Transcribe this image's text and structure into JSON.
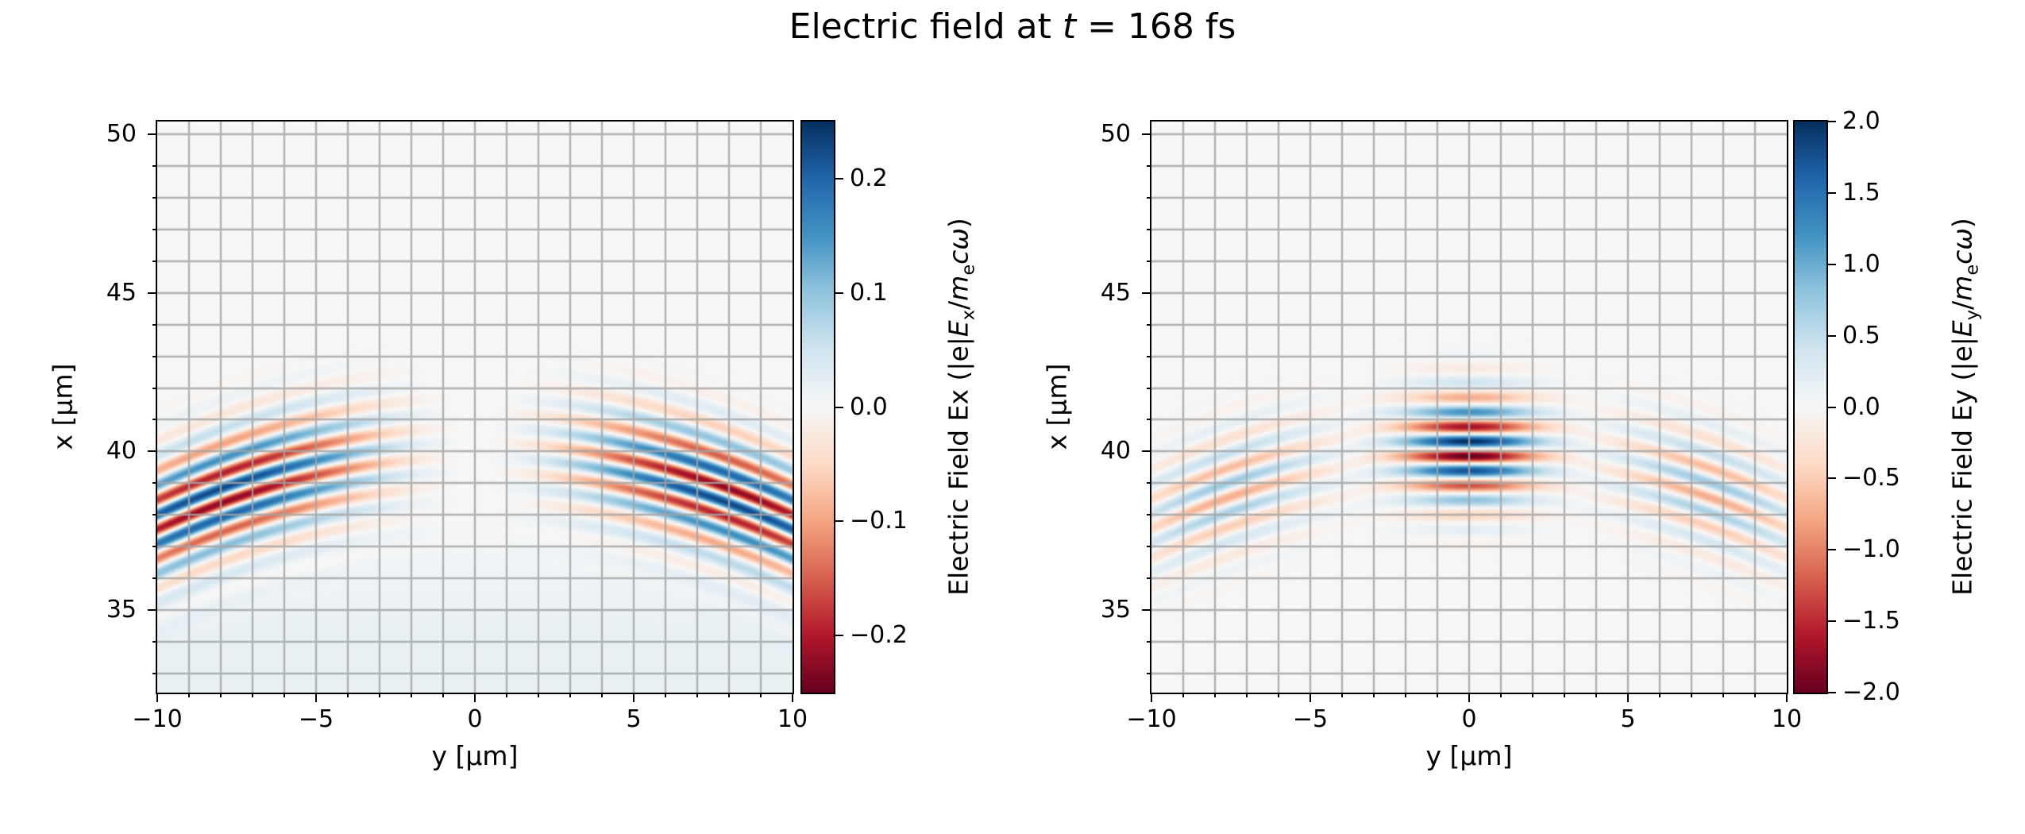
{
  "title": {
    "prefix": "Electric field at ",
    "var": "t",
    "suffix": " = 168 fs"
  },
  "chart_data": {
    "type": "heatmap",
    "title": "Electric field at t = 168 fs",
    "time_fs": 168,
    "colormap": {
      "name": "RdBu",
      "anchors": [
        "#67001f",
        "#b2182b",
        "#d6604d",
        "#f4a582",
        "#fddbc7",
        "#f7f7f7",
        "#d1e5f0",
        "#92c5de",
        "#4393c3",
        "#2166ac",
        "#053061"
      ]
    },
    "grid": {
      "show": true,
      "step_um": 1,
      "color": "#a5a5a5",
      "alpha": 0.85
    },
    "axes": {
      "y_horizontal": {
        "label": "y [μm]",
        "min": -10,
        "max": 10,
        "major_ticks": [
          -10,
          -5,
          0,
          5,
          10
        ],
        "major_tick_labels": [
          "−10",
          "−5",
          "0",
          "5",
          "10"
        ],
        "minor_step": 1
      },
      "x_vertical": {
        "label": "x [μm]",
        "min": 32.4,
        "max": 50.4,
        "major_ticks": [
          50,
          45,
          40,
          35
        ],
        "major_tick_labels": [
          "50",
          "45",
          "40",
          "35"
        ],
        "minor_step": 1
      }
    },
    "panels": [
      {
        "id": "Ex",
        "colorbar_label_text": "Electric Field Ex (|e|Ex/mecω)",
        "colorbar": {
          "vmin": -0.25,
          "vmax": 0.25,
          "ticks": [
            0.2,
            0.1,
            0.0,
            -0.1,
            -0.2
          ],
          "tick_labels": [
            "0.2",
            "0.1",
            "0.0",
            "−0.1",
            "−0.2"
          ]
        },
        "field_model": {
          "amplitude": 0.23,
          "wavelength_um": 0.94,
          "curvature_radius_um": 22,
          "pulse_center_x_um": 40.05,
          "phase_ref_x_um": 40.05,
          "pulse_sigma_x_um": 1.8,
          "transverse_peak_y_um": 8.0,
          "pedestal_amplitude": 0.02,
          "pedestal_center_x_um": 33.2,
          "pedestal_sigma_um": 3.5
        }
      },
      {
        "id": "Ey",
        "colorbar_label_text": "Electric Field Ey (|e|Ey/mecω)",
        "colorbar": {
          "vmin": -2.0,
          "vmax": 2.0,
          "ticks": [
            2.0,
            1.5,
            1.0,
            0.5,
            0.0,
            -0.5,
            -1.0,
            -1.5,
            -2.0
          ],
          "tick_labels": [
            "2.0",
            "1.5",
            "1.0",
            "0.5",
            "0.0",
            "−0.5",
            "−1.0",
            "−1.5",
            "−2.0"
          ]
        },
        "field_model": {
          "central_amplitude": 2.05,
          "central_sigma_y_um": 2.1,
          "central_sigma_x_um": 1.65,
          "wing_amplitude": 0.74,
          "wing_center_y_um": 7.6,
          "wing_sigma_y_um": 3.1,
          "wing_sigma_x_um": 1.8,
          "wavelength_um": 0.94,
          "curvature_radius_um": 22,
          "pulse_center_x_um": 40.05,
          "phase_ref_x_um": 39.85
        }
      }
    ]
  },
  "colorbar_label_ex": {
    "prefix": "Electric Field Ex (|e|",
    "E": "E",
    "Esub": "x",
    "slash": "/",
    "m": "m",
    "msub": "e",
    "c": "c",
    "omega": "ω",
    "close": ")"
  },
  "colorbar_label_ey": {
    "prefix": "Electric Field Ey (|e|",
    "E": "E",
    "Esub": "y",
    "slash": "/",
    "m": "m",
    "msub": "e",
    "c": "c",
    "omega": "ω",
    "close": ")"
  }
}
